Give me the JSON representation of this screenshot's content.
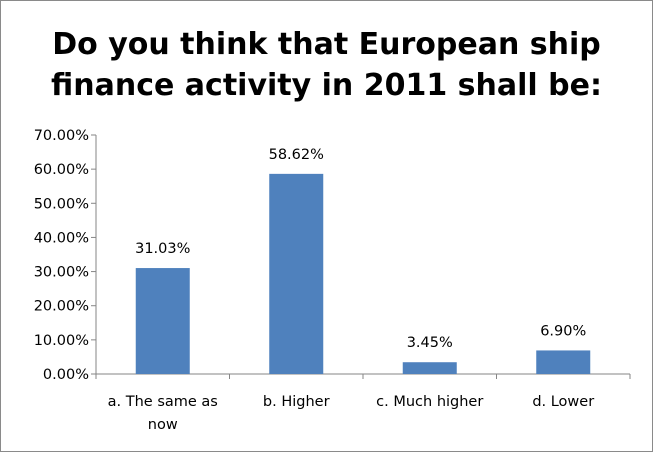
{
  "chart_data": {
    "type": "bar",
    "title_lines": [
      "Do you think that European ship",
      "finance activity in 2011 shall be:"
    ],
    "categories": [
      [
        "a. The same as",
        "now"
      ],
      [
        "b. Higher"
      ],
      [
        "c. Much higher"
      ],
      [
        "d. Lower"
      ]
    ],
    "values": [
      31.03,
      58.62,
      3.45,
      6.9
    ],
    "data_labels": [
      "31.03%",
      "58.62%",
      "3.45%",
      "6.90%"
    ],
    "y_ticks": [
      "0.00%",
      "10.00%",
      "20.00%",
      "30.00%",
      "40.00%",
      "50.00%",
      "60.00%",
      "70.00%"
    ],
    "ylim": [
      0,
      70
    ],
    "bar_color": "#4F81BD",
    "grid": false,
    "legend": "none"
  }
}
